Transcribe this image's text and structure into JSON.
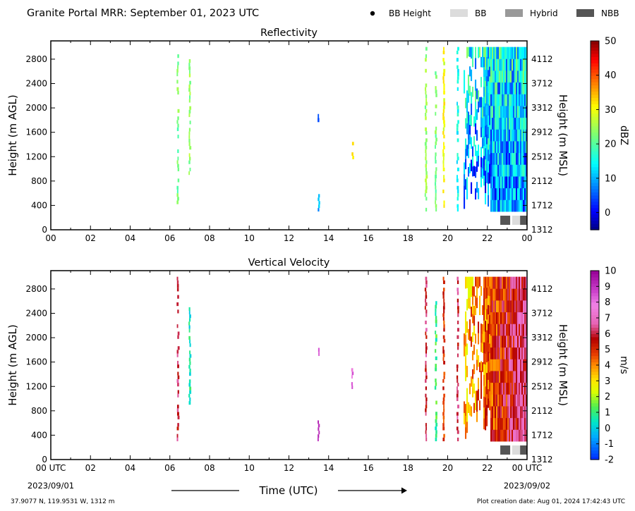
{
  "header": {
    "title": "Granite Portal MRR:  September 01, 2023 UTC",
    "legend": [
      {
        "label": "BB Height",
        "kind": "dot",
        "color": "#000000"
      },
      {
        "label": "BB",
        "kind": "box",
        "color": "#dcdcdc"
      },
      {
        "label": "Hybrid",
        "kind": "box",
        "color": "#999999"
      },
      {
        "label": "NBB",
        "kind": "box",
        "color": "#555555"
      }
    ]
  },
  "chart_data": [
    {
      "type": "heatmap",
      "title": "Reflectivity",
      "ylabel": "Height (m AGL)",
      "ylabel_right": "Height (m MSL)",
      "xlim": [
        0,
        24
      ],
      "ylim": [
        0,
        3100
      ],
      "x_ticks": [
        "00",
        "02",
        "04",
        "06",
        "08",
        "10",
        "12",
        "14",
        "16",
        "18",
        "20",
        "22",
        "00"
      ],
      "y_ticks": [
        0,
        400,
        800,
        1200,
        1600,
        2000,
        2400,
        2800
      ],
      "y_ticks_right": [
        1312,
        1712,
        2112,
        2512,
        2912,
        3312,
        3712,
        4112
      ],
      "colorbar": {
        "label": "dBZ",
        "min": -5,
        "max": 50,
        "ticks": [
          0,
          10,
          20,
          30,
          40,
          50
        ]
      },
      "echoes": [
        {
          "x": 6.4,
          "y0": 300,
          "y1": 3000,
          "value": 22
        },
        {
          "x": 7.0,
          "y0": 900,
          "y1": 2800,
          "value": 24
        },
        {
          "x": 13.5,
          "y0": 300,
          "y1": 700,
          "value": 10
        },
        {
          "x": 13.5,
          "y0": 1700,
          "y1": 1900,
          "value": 5
        },
        {
          "x": 15.2,
          "y0": 1100,
          "y1": 1500,
          "value": 32
        },
        {
          "x": 18.9,
          "y0": 300,
          "y1": 3000,
          "value": 24
        },
        {
          "x": 19.4,
          "y0": 300,
          "y1": 2600,
          "value": 22
        },
        {
          "x": 19.8,
          "y0": 300,
          "y1": 3000,
          "value": 30
        },
        {
          "x": 20.5,
          "y0": 300,
          "y1": 3000,
          "value": 15
        }
      ],
      "dense_region": {
        "x0": 20.8,
        "x1": 24,
        "y0": 300,
        "y1": 3000,
        "values": [
          -2,
          25
        ]
      },
      "classification_markers": [
        {
          "x": 22.9,
          "class": "NBB"
        },
        {
          "x": 23.5,
          "class": "BB"
        },
        {
          "x": 23.9,
          "class": "NBB"
        }
      ]
    },
    {
      "type": "heatmap",
      "title": "Vertical Velocity",
      "ylabel": "Height (m AGL)",
      "ylabel_right": "Height (m MSL)",
      "xlabel": "Time (UTC)",
      "xlim": [
        0,
        24
      ],
      "ylim": [
        0,
        3100
      ],
      "x_ticks": [
        "00 UTC",
        "02",
        "04",
        "06",
        "08",
        "10",
        "12",
        "14",
        "16",
        "18",
        "20",
        "22",
        "00 UTC"
      ],
      "x_dates": [
        "2023/09/01",
        "2023/09/02"
      ],
      "y_ticks": [
        0,
        400,
        800,
        1200,
        1600,
        2000,
        2400,
        2800
      ],
      "y_ticks_right": [
        1312,
        1712,
        2112,
        2512,
        2912,
        3312,
        3712,
        4112
      ],
      "colorbar": {
        "label": "m/s",
        "min": -2,
        "max": 10,
        "ticks": [
          -2,
          -1,
          0,
          1,
          2,
          3,
          4,
          5,
          6,
          7,
          8,
          9,
          10
        ]
      },
      "echoes": [
        {
          "x": 6.4,
          "y0": 300,
          "y1": 3000,
          "value": 6
        },
        {
          "x": 7.0,
          "y0": 900,
          "y1": 2500,
          "value": 0.5
        },
        {
          "x": 13.5,
          "y0": 300,
          "y1": 700,
          "value": 9
        },
        {
          "x": 13.5,
          "y0": 1700,
          "y1": 1900,
          "value": 9
        },
        {
          "x": 15.2,
          "y0": 1100,
          "y1": 1500,
          "value": 8
        },
        {
          "x": 18.9,
          "y0": 300,
          "y1": 3000,
          "value": 6
        },
        {
          "x": 19.4,
          "y0": 300,
          "y1": 2600,
          "value": 1
        },
        {
          "x": 19.8,
          "y0": 300,
          "y1": 3000,
          "value": 5
        },
        {
          "x": 20.5,
          "y0": 300,
          "y1": 3000,
          "value": 6
        }
      ],
      "dense_region": {
        "x0": 20.8,
        "x1": 24,
        "y0": 300,
        "y1": 3000,
        "values": [
          2,
          8
        ]
      },
      "classification_markers": [
        {
          "x": 22.9,
          "class": "NBB"
        },
        {
          "x": 23.5,
          "class": "BB"
        },
        {
          "x": 23.9,
          "class": "NBB"
        }
      ]
    }
  ],
  "footer": {
    "location": "37.9077 N, 119.9531 W, 1312 m",
    "created": "Plot creation date: Aug 01, 2024 17:42:43 UTC"
  }
}
